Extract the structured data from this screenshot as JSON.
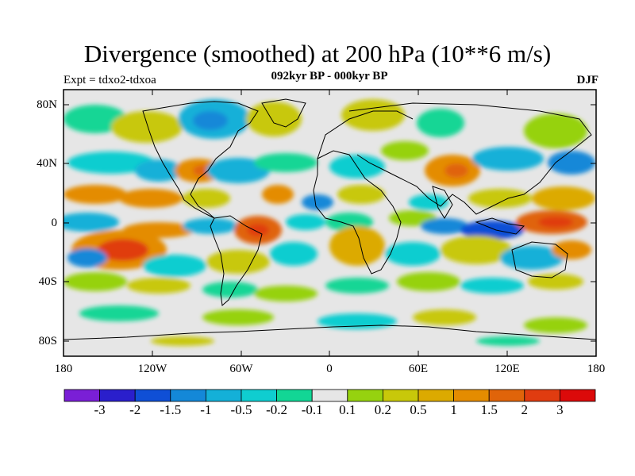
{
  "header": {
    "title": "Divergence (smoothed) at 200 hPa (10**6 m/s)",
    "subtitle": "092kyr BP - 000kyr BP",
    "experiment": "Expt = tdxo2-tdxoa",
    "season": "DJF"
  },
  "axes": {
    "lat_ticks": [
      "80N",
      "40N",
      "0",
      "40S",
      "80S"
    ],
    "lon_ticks": [
      "180",
      "120W",
      "60W",
      "0",
      "60E",
      "120E",
      "180"
    ]
  },
  "colorbar": {
    "labels": [
      "-3",
      "-2",
      "-1.5",
      "-1",
      "-0.5",
      "-0.2",
      "-0.1",
      "0.1",
      "0.2",
      "0.5",
      "1",
      "1.5",
      "2",
      "3"
    ],
    "colors": [
      "#7a1fd6",
      "#2a1fcc",
      "#0f4fd6",
      "#1488d8",
      "#14b0d8",
      "#0fcdd0",
      "#12d695",
      "#e6e6e6",
      "#96d20f",
      "#c8c80a",
      "#dcaa00",
      "#e48c00",
      "#e0640a",
      "#e03c10",
      "#dc0a0a"
    ]
  },
  "map_colors": {
    "ocean_background": "#e6e6e6",
    "coastline": "#000000"
  }
}
